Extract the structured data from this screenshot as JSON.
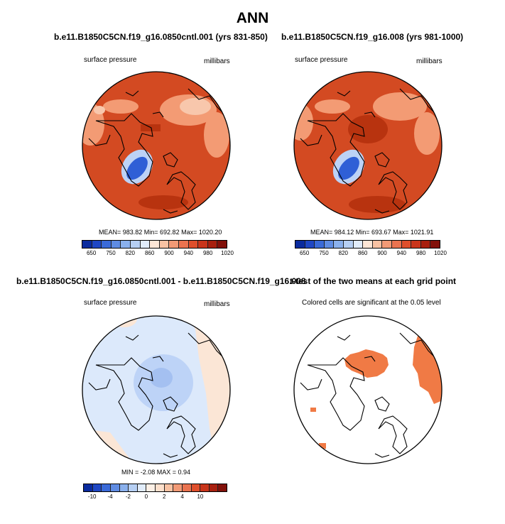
{
  "title": "ANN",
  "panels": {
    "p1": {
      "title": "b.e11.B1850C5CN.f19_g16.0850cntl.001 (yrs 831-850)",
      "left_label": "surface pressure",
      "right_label": "millibars",
      "stats": "MEAN= 983.82  Min= 692.82  Max= 1020.20"
    },
    "p2": {
      "title": "b.e11.B1850C5CN.f19_g16.008 (yrs 981-1000)",
      "left_label": "surface pressure",
      "right_label": "millibars",
      "stats": "MEAN= 984.12  Min= 693.67  Max= 1021.91"
    },
    "p3": {
      "title": "b.e11.B1850C5CN.f19_g16.0850cntl.001 - b.e11.B1850C5CN.f19_g16.008",
      "left_label": "surface pressure",
      "right_label": "millibars",
      "stats": "MIN =  -2.08 MAX =   0.94"
    },
    "p4": {
      "title": "t-test of the two means at each grid point",
      "subtitle": "Colored cells are significant at the 0.05 level"
    }
  },
  "colorbar_abs": {
    "colors": [
      "#0a2b9e",
      "#1f47c4",
      "#3a6ad8",
      "#5f8ce3",
      "#8ab0ec",
      "#b6cff3",
      "#e1ecfa",
      "#fde6d6",
      "#f8c2a3",
      "#f29a76",
      "#ea7350",
      "#df4f2c",
      "#c9351b",
      "#a8200f",
      "#82110a"
    ],
    "ticks": [
      "650",
      "750",
      "820",
      "860",
      "900",
      "940",
      "980",
      "1020"
    ]
  },
  "colorbar_diff": {
    "colors": [
      "#0a2b9e",
      "#1f47c4",
      "#3a6ad8",
      "#5f8ce3",
      "#8ab0ec",
      "#b6cff3",
      "#e1ecfa",
      "#fdf0e6",
      "#fde0cc",
      "#f8c2a3",
      "#f29a76",
      "#ea7350",
      "#df4f2c",
      "#c9351b",
      "#a8200f",
      "#82110a"
    ],
    "ticks": [
      "-10",
      "-4",
      "-2",
      "0",
      "2",
      "4",
      "10"
    ]
  },
  "map_colors": {
    "base_abs": "#d34a22",
    "dark_abs": "#b8330f",
    "light_abs": "#f39b74",
    "lighter_abs": "#f8c7ac",
    "low_blue": "#2f5fd6",
    "low_light": "#bcd2f6",
    "base_diff": "#dce9fb",
    "mid_diff": "#bdd3f7",
    "deep_diff": "#a4c0f1",
    "pos_diff": "#fbe6d6",
    "sig": "#f07a45"
  }
}
